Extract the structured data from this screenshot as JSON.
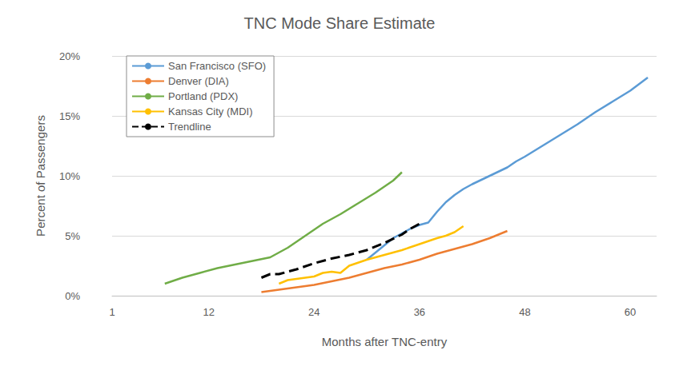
{
  "chart_data": {
    "type": "line",
    "title": "TNC Mode Share Estimate",
    "x_label": "Months after TNC-entry",
    "y_label": "Percent of Passengers",
    "xlim": [
      1,
      63
    ],
    "xticks": [
      1,
      12,
      24,
      36,
      48,
      60
    ],
    "ylim": [
      0,
      20
    ],
    "yticks": [
      {
        "value": 0,
        "label": "0%"
      },
      {
        "value": 5,
        "label": "5%"
      },
      {
        "value": 10,
        "label": "10%"
      },
      {
        "value": 15,
        "label": "15%"
      },
      {
        "value": 20,
        "label": "20%"
      }
    ],
    "grid": true,
    "legend": "upper left",
    "series": [
      {
        "name": "San Francisco (SFO)",
        "color": "#5b9bd5",
        "line_style": "solid",
        "x": [
          30,
          31,
          32,
          33,
          34,
          35,
          36,
          37,
          38,
          39,
          40,
          41,
          42,
          44,
          46,
          47,
          48,
          50,
          52,
          54,
          56,
          58,
          60,
          62
        ],
        "values": [
          3.0,
          3.6,
          4.2,
          4.8,
          5.2,
          5.6,
          5.9,
          6.1,
          7.0,
          7.8,
          8.4,
          8.9,
          9.3,
          10.0,
          10.7,
          11.2,
          11.6,
          12.5,
          13.4,
          14.3,
          15.3,
          16.2,
          17.1,
          18.2
        ]
      },
      {
        "name": "Denver (DIA)",
        "color": "#ed7d31",
        "line_style": "solid",
        "x": [
          18,
          20,
          22,
          24,
          26,
          28,
          30,
          32,
          34,
          36,
          38,
          40,
          42,
          44,
          46
        ],
        "values": [
          0.3,
          0.5,
          0.7,
          0.9,
          1.2,
          1.5,
          1.9,
          2.3,
          2.6,
          3.0,
          3.5,
          3.9,
          4.3,
          4.8,
          5.4
        ]
      },
      {
        "name": "Portland (PDX)",
        "color": "#70ad47",
        "line_style": "solid",
        "x": [
          7,
          9,
          11,
          13,
          15,
          17,
          19,
          21,
          23,
          25,
          27,
          29,
          31,
          33,
          34
        ],
        "values": [
          1.0,
          1.5,
          1.9,
          2.3,
          2.6,
          2.9,
          3.2,
          4.0,
          5.0,
          6.0,
          6.8,
          7.7,
          8.6,
          9.6,
          10.3
        ]
      },
      {
        "name": "Kansas City (MDI)",
        "color": "#ffc000",
        "line_style": "solid",
        "x": [
          20,
          21,
          22,
          23,
          24,
          25,
          26,
          27,
          28,
          30,
          32,
          34,
          36,
          38,
          39,
          40,
          41
        ],
        "values": [
          1.0,
          1.3,
          1.4,
          1.5,
          1.6,
          1.9,
          2.0,
          1.9,
          2.5,
          3.0,
          3.4,
          3.8,
          4.3,
          4.8,
          5.0,
          5.3,
          5.8
        ]
      },
      {
        "name": "Trendline",
        "color": "#000000",
        "line_style": "dashed",
        "x": [
          18,
          19,
          20,
          22,
          24,
          26,
          28,
          30,
          32,
          34,
          35,
          36
        ],
        "values": [
          1.5,
          1.8,
          1.8,
          2.2,
          2.7,
          3.1,
          3.4,
          3.8,
          4.4,
          5.1,
          5.6,
          6.0
        ]
      }
    ]
  }
}
